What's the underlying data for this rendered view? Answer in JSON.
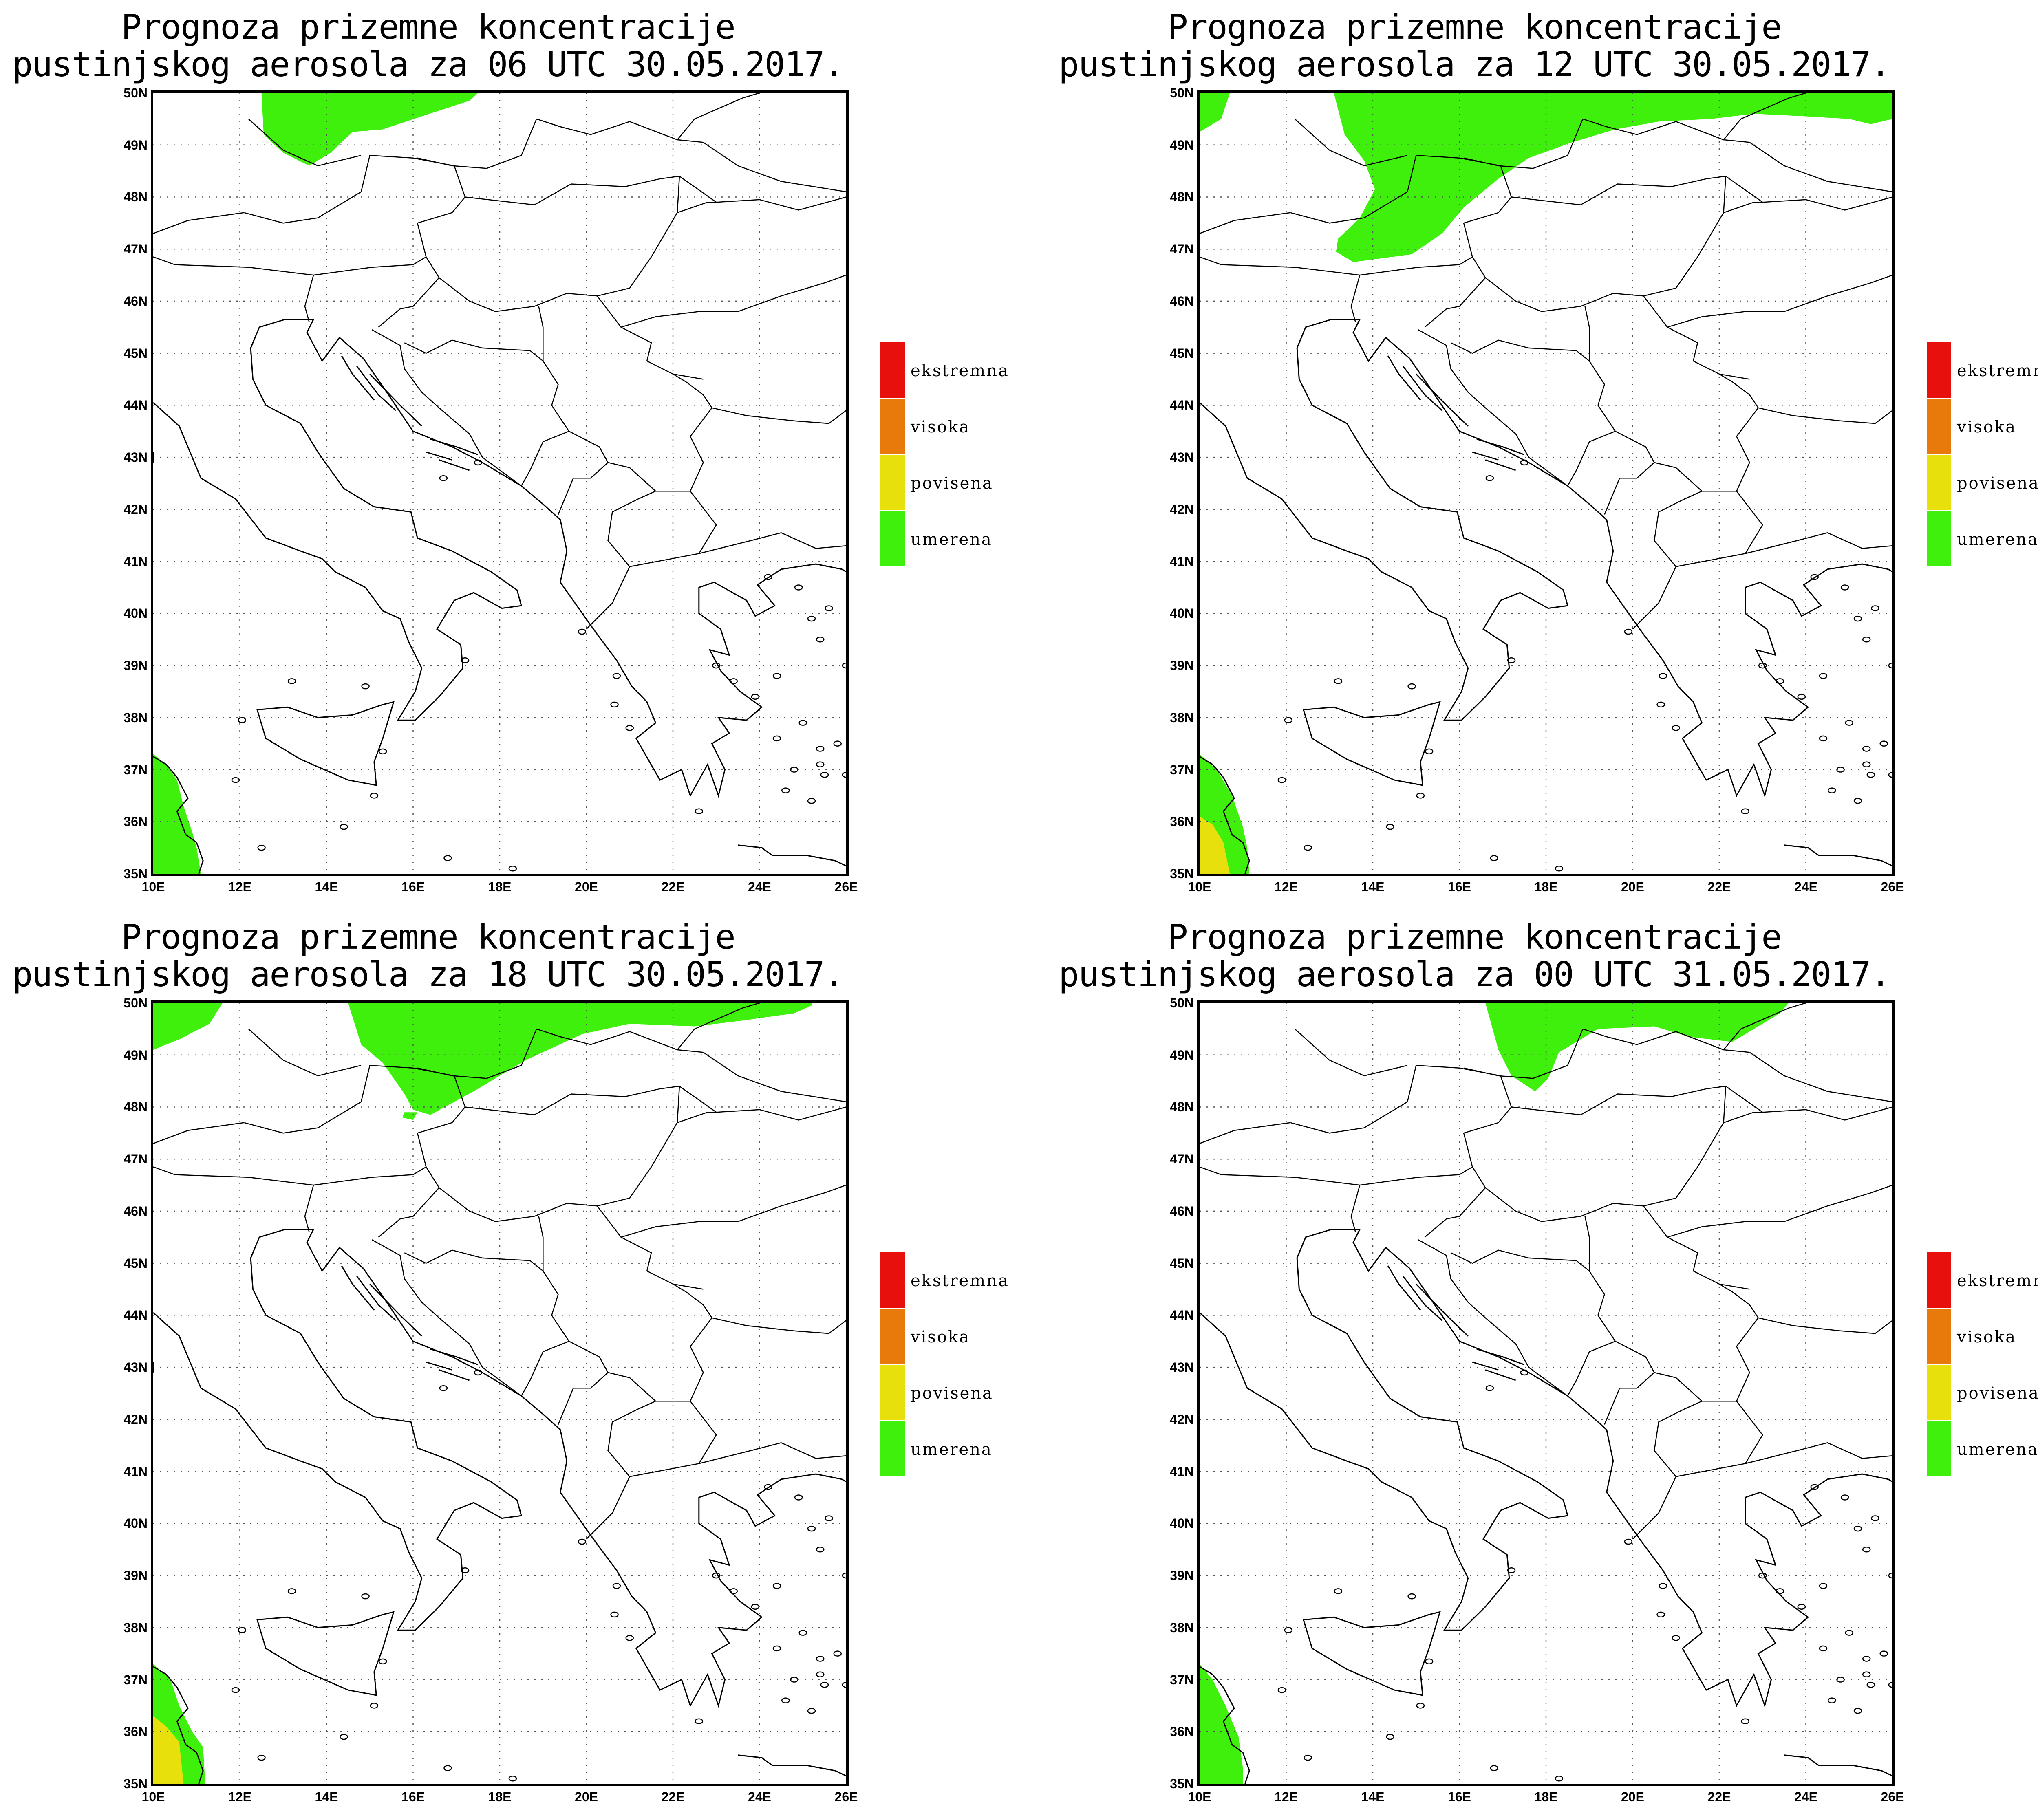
{
  "panels": [
    {
      "title_line1": "Prognoza prizemne koncentracije",
      "title_line2": "pustinjskog aerosola za 06 UTC 30.05.2017."
    },
    {
      "title_line1": "Prognoza prizemne koncentracije",
      "title_line2": "pustinjskog aerosola za 12 UTC 30.05.2017."
    },
    {
      "title_line1": "Prognoza prizemne koncentracije",
      "title_line2": "pustinjskog aerosola za 18 UTC 30.05.2017."
    },
    {
      "title_line1": "Prognoza prizemne koncentracije",
      "title_line2": "pustinjskog aerosola za 00 UTC 31.05.2017."
    }
  ],
  "lat_labels": [
    "50N",
    "49N",
    "48N",
    "47N",
    "46N",
    "45N",
    "44N",
    "43N",
    "42N",
    "41N",
    "40N",
    "39N",
    "38N",
    "37N",
    "36N",
    "35N"
  ],
  "lon_labels": [
    "10E",
    "12E",
    "14E",
    "16E",
    "18E",
    "20E",
    "22E",
    "24E",
    "26E"
  ],
  "legend": [
    {
      "label": "ekstremna",
      "color": "#e8100c"
    },
    {
      "label": "visoka",
      "color": "#e87a0c"
    },
    {
      "label": "povisena",
      "color": "#e8e00c"
    },
    {
      "label": "umerena",
      "color": "#3ef00c"
    }
  ],
  "colors": {
    "moderate": "#3ef00c",
    "elevated": "#e8e00c",
    "coast": "#000000",
    "grid": "#555555"
  },
  "map_extent": {
    "lon_min": 10,
    "lon_max": 26,
    "lat_min": 35,
    "lat_max": 50
  }
}
